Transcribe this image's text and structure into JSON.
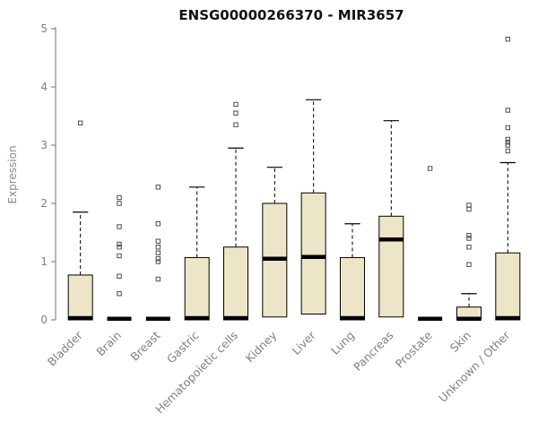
{
  "title": "ENSG00000266370 - MIR3657",
  "chart_data": {
    "type": "boxplot",
    "title": "ENSG00000266370 - MIR3657",
    "ylabel": "Expression",
    "ylim": [
      0,
      5
    ],
    "yticks": [
      0,
      1,
      2,
      3,
      4,
      5
    ],
    "grid": false,
    "legend": "none",
    "box_fill": "#EDE5C8",
    "box_stroke": "#000000",
    "axis_color": "#888888",
    "tick_color": "#808080",
    "outlier_color": "#4d4d4d",
    "categories": [
      "Bladder",
      "Brain",
      "Breast",
      "Gastric",
      "Hematopoietic cells",
      "Kidney",
      "Liver",
      "Lung",
      "Pancreas",
      "Prostate",
      "Skin",
      "Unknown / Other"
    ],
    "boxes": [
      {
        "label": "Bladder",
        "q1": 0,
        "median": 0.03,
        "q3": 0.77,
        "whisker_low": 0,
        "whisker_high": 1.85,
        "outliers": [
          3.38
        ]
      },
      {
        "label": "Brain",
        "q1": 0,
        "median": 0.02,
        "q3": 0,
        "whisker_low": 0,
        "whisker_high": 0,
        "outliers": [
          0.45,
          0.75,
          1.1,
          1.25,
          1.3,
          1.6,
          2.0,
          2.1
        ]
      },
      {
        "label": "Breast",
        "q1": 0,
        "median": 0.02,
        "q3": 0,
        "whisker_low": 0,
        "whisker_high": 0,
        "outliers": [
          0.7,
          1.0,
          1.05,
          1.15,
          1.25,
          1.35,
          1.65,
          2.28
        ]
      },
      {
        "label": "Gastric",
        "q1": 0,
        "median": 0.03,
        "q3": 1.07,
        "whisker_low": 0,
        "whisker_high": 2.28,
        "outliers": []
      },
      {
        "label": "Hematopoietic cells",
        "q1": 0,
        "median": 0.03,
        "q3": 1.25,
        "whisker_low": 0,
        "whisker_high": 2.95,
        "outliers": [
          3.35,
          3.55,
          3.7
        ]
      },
      {
        "label": "Kidney",
        "q1": 0.05,
        "median": 1.05,
        "q3": 2.0,
        "whisker_low": 0.05,
        "whisker_high": 2.62,
        "outliers": []
      },
      {
        "label": "Liver",
        "q1": 0.1,
        "median": 1.08,
        "q3": 2.18,
        "whisker_low": 0.1,
        "whisker_high": 3.78,
        "outliers": []
      },
      {
        "label": "Lung",
        "q1": 0,
        "median": 0.03,
        "q3": 1.07,
        "whisker_low": 0,
        "whisker_high": 1.65,
        "outliers": []
      },
      {
        "label": "Pancreas",
        "q1": 0.05,
        "median": 1.38,
        "q3": 1.78,
        "whisker_low": 0.05,
        "whisker_high": 3.42,
        "outliers": []
      },
      {
        "label": "Prostate",
        "q1": 0,
        "median": 0.02,
        "q3": 0,
        "whisker_low": 0,
        "whisker_high": 0,
        "outliers": [
          2.6
        ]
      },
      {
        "label": "Skin",
        "q1": 0,
        "median": 0.02,
        "q3": 0.22,
        "whisker_low": 0,
        "whisker_high": 0.45,
        "outliers": [
          0.95,
          1.25,
          1.4,
          1.45,
          1.9,
          1.97
        ]
      },
      {
        "label": "Unknown / Other",
        "q1": 0,
        "median": 0.03,
        "q3": 1.15,
        "whisker_low": 0,
        "whisker_high": 2.7,
        "outliers": [
          2.9,
          3.0,
          3.05,
          3.1,
          3.3,
          3.6,
          4.82
        ]
      }
    ]
  }
}
